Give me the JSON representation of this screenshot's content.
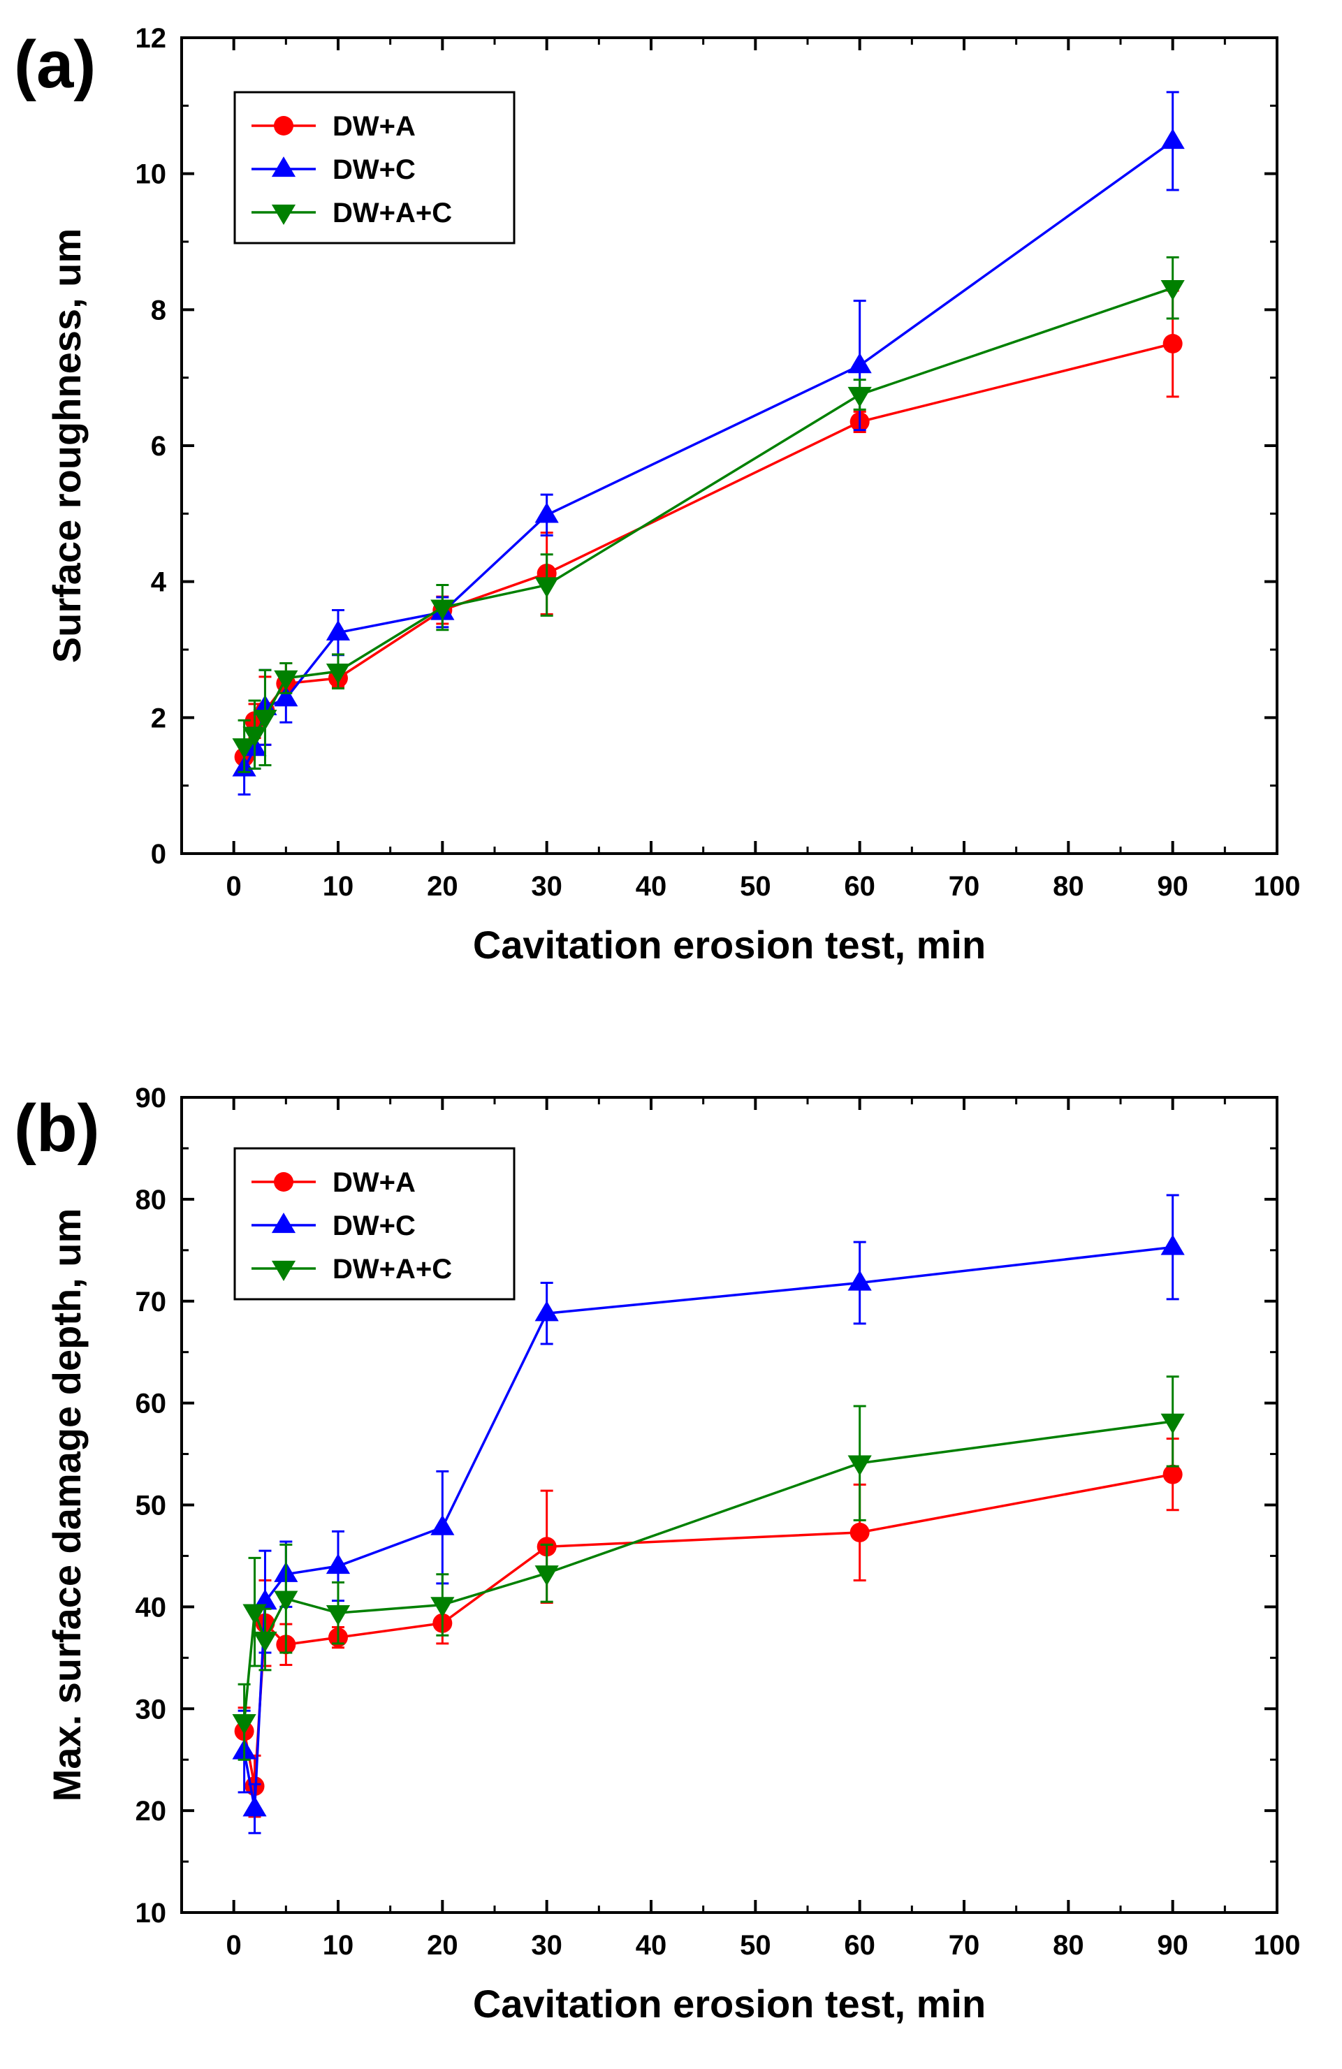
{
  "chart_data": [
    {
      "type": "line",
      "panel": "(a)",
      "xlabel": "Cavitation erosion test, min",
      "ylabel": "Surface roughness, um",
      "xlim": [
        -5,
        100
      ],
      "ylim": [
        0,
        12
      ],
      "xticks": [
        0,
        10,
        20,
        30,
        40,
        50,
        60,
        70,
        80,
        90,
        100
      ],
      "yticks": [
        0,
        2,
        4,
        6,
        8,
        10,
        12
      ],
      "grid": false,
      "legend_position": "top-left",
      "series": [
        {
          "name": "DW+A",
          "color": "#ff0000",
          "marker": "circle",
          "x": [
            1,
            2,
            3,
            5,
            10,
            20,
            30,
            60,
            90
          ],
          "values": [
            1.42,
            1.95,
            2.1,
            2.5,
            2.58,
            3.58,
            4.12,
            6.35,
            7.5
          ],
          "errors": [
            0.2,
            0.25,
            0.5,
            0.3,
            0.12,
            0.2,
            0.6,
            0.15,
            0.78
          ]
        },
        {
          "name": "DW+C",
          "color": "#0000ff",
          "marker": "triangle-up",
          "x": [
            1,
            2,
            3,
            5,
            10,
            20,
            30,
            60,
            90
          ],
          "values": [
            1.25,
            1.55,
            2.15,
            2.28,
            3.25,
            3.55,
            4.98,
            7.18,
            10.48
          ],
          "errors": [
            0.38,
            0.3,
            0.55,
            0.35,
            0.33,
            0.22,
            0.3,
            0.95,
            0.72
          ]
        },
        {
          "name": "DW+A+C",
          "color": "#008000",
          "marker": "triangle-down",
          "x": [
            1,
            2,
            3,
            5,
            10,
            20,
            30,
            60,
            90
          ],
          "values": [
            1.58,
            1.75,
            2.0,
            2.58,
            2.68,
            3.62,
            3.95,
            6.75,
            8.32
          ],
          "errors": [
            0.38,
            0.5,
            0.7,
            0.22,
            0.25,
            0.33,
            0.45,
            0.22,
            0.45
          ]
        }
      ]
    },
    {
      "type": "line",
      "panel": "(b)",
      "xlabel": "Cavitation erosion test, min",
      "ylabel": "Max. surface damage depth, um",
      "xlim": [
        -5,
        100
      ],
      "ylim": [
        10,
        90
      ],
      "xticks": [
        0,
        10,
        20,
        30,
        40,
        50,
        60,
        70,
        80,
        90,
        100
      ],
      "yticks": [
        10,
        20,
        30,
        40,
        50,
        60,
        70,
        80,
        90
      ],
      "grid": false,
      "legend_position": "top-left",
      "series": [
        {
          "name": "DW+A",
          "color": "#ff0000",
          "marker": "circle",
          "x": [
            1,
            2,
            3,
            5,
            10,
            20,
            30,
            60,
            90
          ],
          "values": [
            27.8,
            22.4,
            38.4,
            36.3,
            37.0,
            38.4,
            45.9,
            47.3,
            53.0
          ],
          "errors": [
            2.3,
            3.0,
            4.2,
            2.0,
            1.0,
            2.0,
            5.5,
            4.7,
            3.5
          ]
        },
        {
          "name": "DW+C",
          "color": "#0000ff",
          "marker": "triangle-up",
          "x": [
            1,
            2,
            3,
            5,
            10,
            20,
            30,
            60,
            90
          ],
          "values": [
            25.8,
            20.2,
            40.5,
            43.2,
            44.0,
            47.8,
            68.8,
            71.8,
            75.3
          ],
          "errors": [
            4.0,
            2.4,
            5.0,
            3.2,
            3.4,
            5.5,
            3.0,
            4.0,
            5.1
          ]
        },
        {
          "name": "DW+A+C",
          "color": "#008000",
          "marker": "triangle-down",
          "x": [
            1,
            2,
            3,
            5,
            10,
            20,
            30,
            60,
            90
          ],
          "values": [
            28.7,
            39.5,
            36.8,
            40.8,
            39.4,
            40.2,
            43.3,
            54.1,
            58.2
          ],
          "errors": [
            3.7,
            5.3,
            3.0,
            5.3,
            3.0,
            3.0,
            2.8,
            5.6,
            4.4
          ]
        }
      ]
    }
  ]
}
